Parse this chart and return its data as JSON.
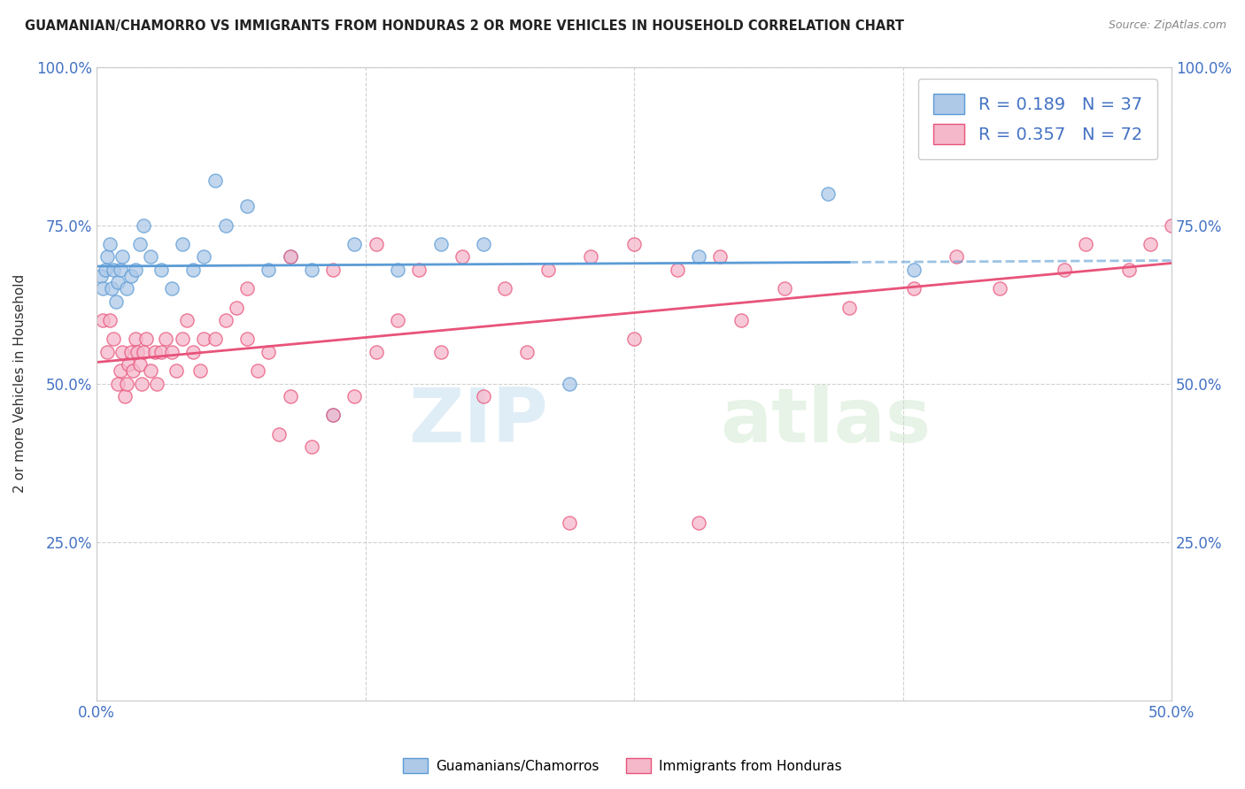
{
  "title": "GUAMANIAN/CHAMORRO VS IMMIGRANTS FROM HONDURAS 2 OR MORE VEHICLES IN HOUSEHOLD CORRELATION CHART",
  "source": "Source: ZipAtlas.com",
  "ylabel": "2 or more Vehicles in Household",
  "xlim": [
    0.0,
    50.0
  ],
  "ylim": [
    0.0,
    100.0
  ],
  "legend_r_blue": "0.189",
  "legend_n_blue": "37",
  "legend_r_pink": "0.357",
  "legend_n_pink": "72",
  "blue_color": "#5b9bd5",
  "blue_face": "#aec9e8",
  "pink_color": "#e8537a",
  "pink_face": "#f5b8cb",
  "watermark_zip": "ZIP",
  "watermark_atlas": "atlas",
  "blue_x": [
    0.2,
    0.3,
    0.4,
    0.5,
    0.6,
    0.7,
    0.8,
    0.9,
    1.0,
    1.1,
    1.2,
    1.4,
    1.6,
    1.8,
    2.0,
    2.2,
    2.5,
    3.0,
    3.5,
    4.0,
    4.5,
    5.0,
    5.5,
    6.0,
    7.0,
    8.0,
    9.0,
    10.0,
    11.0,
    12.0,
    14.0,
    16.0,
    18.0,
    22.0,
    28.0,
    34.0,
    38.0
  ],
  "blue_y": [
    67,
    65,
    68,
    70,
    72,
    65,
    68,
    63,
    66,
    68,
    70,
    65,
    67,
    68,
    72,
    75,
    70,
    68,
    65,
    72,
    68,
    70,
    82,
    75,
    78,
    68,
    70,
    68,
    45,
    72,
    68,
    72,
    72,
    50,
    70,
    80,
    68
  ],
  "pink_x": [
    0.3,
    0.5,
    0.6,
    0.8,
    1.0,
    1.1,
    1.2,
    1.3,
    1.4,
    1.5,
    1.6,
    1.7,
    1.8,
    1.9,
    2.0,
    2.1,
    2.2,
    2.3,
    2.5,
    2.7,
    2.8,
    3.0,
    3.2,
    3.5,
    3.7,
    4.0,
    4.2,
    4.5,
    4.8,
    5.0,
    5.5,
    6.0,
    6.5,
    7.0,
    7.5,
    8.0,
    8.5,
    9.0,
    10.0,
    11.0,
    12.0,
    13.0,
    14.0,
    16.0,
    18.0,
    20.0,
    22.0,
    25.0,
    28.0,
    30.0,
    32.0,
    35.0,
    38.0,
    40.0,
    42.0,
    45.0,
    46.0,
    48.0,
    49.0,
    50.0,
    7.0,
    9.0,
    11.0,
    13.0,
    15.0,
    17.0,
    19.0,
    21.0,
    23.0,
    25.0,
    27.0,
    29.0
  ],
  "pink_y": [
    60,
    55,
    60,
    57,
    50,
    52,
    55,
    48,
    50,
    53,
    55,
    52,
    57,
    55,
    53,
    50,
    55,
    57,
    52,
    55,
    50,
    55,
    57,
    55,
    52,
    57,
    60,
    55,
    52,
    57,
    57,
    60,
    62,
    57,
    52,
    55,
    42,
    48,
    40,
    45,
    48,
    55,
    60,
    55,
    48,
    55,
    28,
    57,
    28,
    60,
    65,
    62,
    65,
    70,
    65,
    68,
    72,
    68,
    72,
    75,
    65,
    70,
    68,
    72,
    68,
    70,
    65,
    68,
    70,
    72,
    68,
    70
  ]
}
